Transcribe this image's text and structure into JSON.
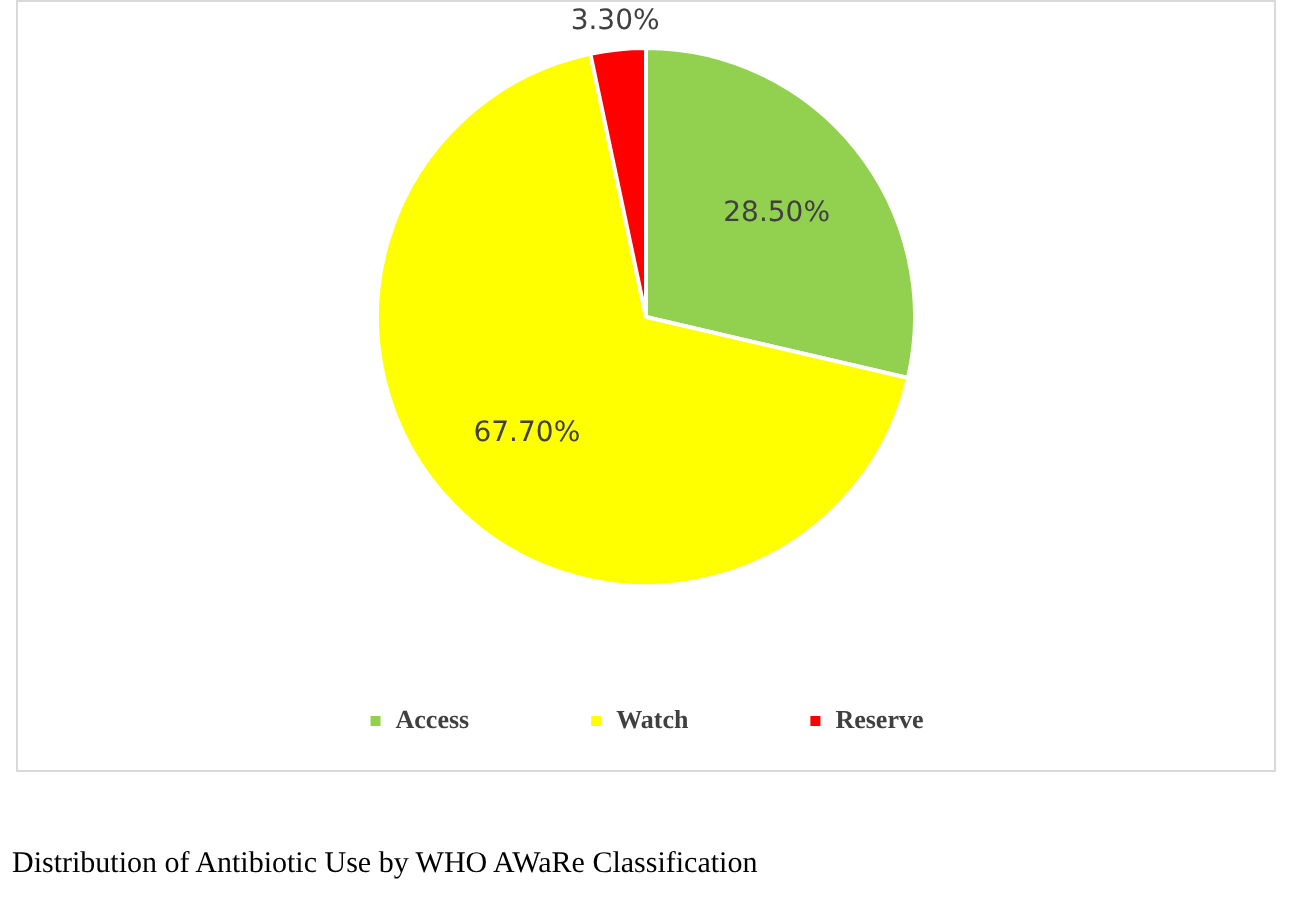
{
  "chart_data": {
    "type": "pie",
    "categories": [
      "Access",
      "Watch",
      "Reserve"
    ],
    "values": [
      28.5,
      67.7,
      3.3
    ],
    "colors": [
      "#92d050",
      "#ffff00",
      "#ff0000"
    ],
    "value_labels": [
      "28.50%",
      "67.70%",
      "3.30%"
    ],
    "legend": "bottom",
    "annotations": [
      "Distribution of Antibiotic Use by WHO AWaRe Classification"
    ]
  }
}
